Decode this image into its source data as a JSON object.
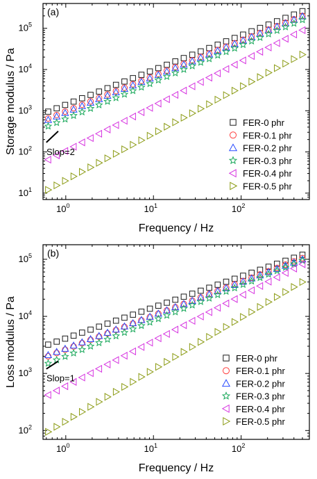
{
  "chart_data": [
    {
      "type": "scatter",
      "panel_label": "(a)",
      "xlabel": "Frequency / Hz",
      "ylabel": "Storage modulus / Pa",
      "xscale": "log",
      "yscale": "log",
      "xlim": [
        0.55,
        600
      ],
      "ylim": [
        7,
        400000
      ],
      "xticks": [
        {
          "v": 1,
          "base": "10",
          "exp": "0"
        },
        {
          "v": 10,
          "base": "10",
          "exp": "1"
        },
        {
          "v": 100,
          "base": "10",
          "exp": "2"
        }
      ],
      "yticks": [
        {
          "v": 10,
          "base": "10",
          "exp": "1"
        },
        {
          "v": 100,
          "base": "10",
          "exp": "2"
        },
        {
          "v": 1000,
          "base": "10",
          "exp": "3"
        },
        {
          "v": 10000,
          "base": "10",
          "exp": "4"
        },
        {
          "v": 100000,
          "base": "10",
          "exp": "5"
        }
      ],
      "legend_position": "lower-right",
      "annotation": {
        "text": "Slop=2",
        "slope": 2,
        "x0": 0.6,
        "x1": 0.82,
        "y0": 170
      },
      "series": [
        {
          "name": "FER-0 phr",
          "marker": "square",
          "color": "#1a1a1a",
          "start": [
            0.63,
            950
          ],
          "end": [
            500,
            260000
          ]
        },
        {
          "name": "FER-0.1 phr",
          "marker": "circle",
          "color": "#ff3b3b",
          "start": [
            0.63,
            650
          ],
          "end": [
            500,
            200000
          ]
        },
        {
          "name": "FER-0.2 phr",
          "marker": "triangle-up",
          "color": "#2a4cff",
          "start": [
            0.63,
            600
          ],
          "end": [
            500,
            195000
          ]
        },
        {
          "name": "FER-0.3 phr",
          "marker": "star",
          "color": "#19a85a",
          "start": [
            0.63,
            420
          ],
          "end": [
            500,
            160000
          ]
        },
        {
          "name": "FER-0.4 phr",
          "marker": "triangle-left",
          "color": "#d633e0",
          "start": [
            0.63,
            65
          ],
          "end": [
            500,
            90000
          ]
        },
        {
          "name": "FER-0.5 phr",
          "marker": "triangle-right",
          "color": "#8a9a12",
          "start": [
            0.63,
            12
          ],
          "end": [
            500,
            23000
          ]
        }
      ]
    },
    {
      "type": "scatter",
      "panel_label": "(b)",
      "xlabel": "Frequency / Hz",
      "ylabel": "Loss modulus / Pa",
      "xscale": "log",
      "yscale": "log",
      "xlim": [
        0.55,
        600
      ],
      "ylim": [
        70,
        180000
      ],
      "xticks": [
        {
          "v": 1,
          "base": "10",
          "exp": "0"
        },
        {
          "v": 10,
          "base": "10",
          "exp": "1"
        },
        {
          "v": 100,
          "base": "10",
          "exp": "2"
        }
      ],
      "yticks": [
        {
          "v": 100,
          "base": "10",
          "exp": "2"
        },
        {
          "v": 1000,
          "base": "10",
          "exp": "3"
        },
        {
          "v": 10000,
          "base": "10",
          "exp": "4"
        },
        {
          "v": 100000,
          "base": "10",
          "exp": "5"
        }
      ],
      "legend_position": "lower-right",
      "annotation": {
        "text": "Slop=1",
        "slope": 1,
        "x0": 0.6,
        "x1": 0.82,
        "y0": 1200
      },
      "series": [
        {
          "name": "FER-0 phr",
          "marker": "square",
          "color": "#1a1a1a",
          "start": [
            0.63,
            3200
          ],
          "end": [
            500,
            120000
          ]
        },
        {
          "name": "FER-0.1 phr",
          "marker": "circle",
          "color": "#ff3b3b",
          "start": [
            0.63,
            2000
          ],
          "end": [
            500,
            105000
          ]
        },
        {
          "name": "FER-0.2 phr",
          "marker": "triangle-up",
          "color": "#2a4cff",
          "start": [
            0.63,
            2100
          ],
          "end": [
            500,
            100000
          ]
        },
        {
          "name": "FER-0.3 phr",
          "marker": "star",
          "color": "#19a85a",
          "start": [
            0.63,
            1500
          ],
          "end": [
            500,
            95000
          ]
        },
        {
          "name": "FER-0.4 phr",
          "marker": "triangle-left",
          "color": "#d633e0",
          "start": [
            0.63,
            420
          ],
          "end": [
            500,
            82000
          ]
        },
        {
          "name": "FER-0.5 phr",
          "marker": "triangle-right",
          "color": "#8a9a12",
          "start": [
            0.63,
            95
          ],
          "end": [
            500,
            40000
          ]
        }
      ]
    }
  ]
}
